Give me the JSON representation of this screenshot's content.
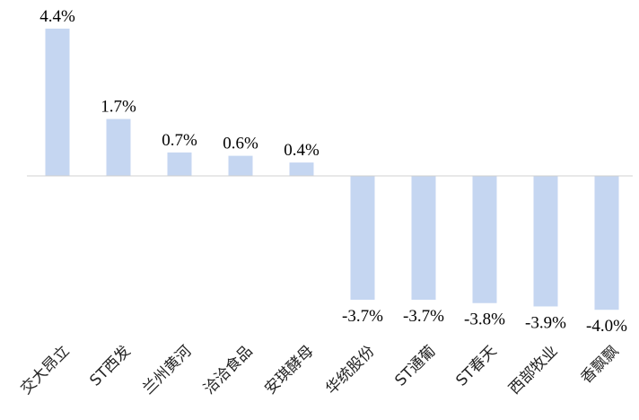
{
  "chart_data": {
    "type": "bar",
    "categories": [
      "交大昂立",
      "ST西发",
      "兰州黄河",
      "洽洽食品",
      "安琪酵母",
      "华统股份",
      "ST通葡",
      "ST春天",
      "西部牧业",
      "香飘飘"
    ],
    "values": [
      4.4,
      1.7,
      0.7,
      0.6,
      0.4,
      -3.7,
      -3.7,
      -3.8,
      -3.9,
      -4.0
    ],
    "value_labels": [
      "4.4%",
      "1.7%",
      "0.7%",
      "0.6%",
      "0.4%",
      "-3.7%",
      "-3.7%",
      "-3.8%",
      "-3.9%",
      "-4.0%"
    ],
    "title": "",
    "xlabel": "",
    "ylabel": "",
    "ylim": [
      -4.0,
      4.4
    ],
    "grid": false,
    "legend": "none",
    "colors": {
      "bar": "#c5d6f1",
      "axis": "#d0d0d0"
    }
  }
}
